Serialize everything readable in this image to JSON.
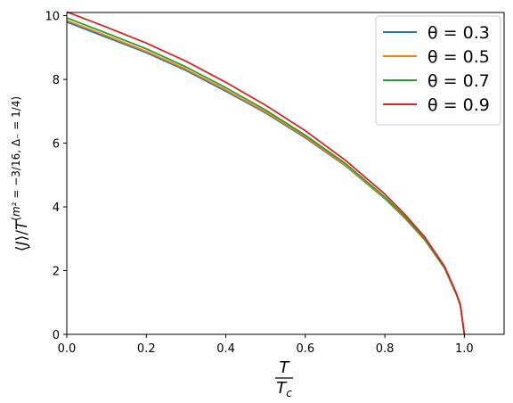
{
  "chart_data": {
    "type": "line",
    "xlabel_num": "T",
    "xlabel_den": "T_c",
    "ylabel": "⟨J⟩/T^(m² = −3/16, Δ₋ = 1/4)",
    "xlim": [
      0,
      1.1
    ],
    "ylim": [
      0,
      10.1
    ],
    "xticks": [
      "0.0",
      "0.2",
      "0.4",
      "0.6",
      "0.8",
      "1.0"
    ],
    "yticks": [
      "0",
      "2",
      "4",
      "6",
      "8",
      "10"
    ],
    "grid": false,
    "legend_position": "top-right",
    "x": [
      0,
      0.1,
      0.2,
      0.3,
      0.4,
      0.5,
      0.6,
      0.7,
      0.8,
      0.85,
      0.9,
      0.95,
      0.98,
      0.99,
      1.0
    ],
    "series": [
      {
        "name": "θ = 0.3",
        "label": "θ = 0.3",
        "color": "#1f77b4",
        "values": [
          9.8,
          9.32,
          8.84,
          8.28,
          7.63,
          6.95,
          6.17,
          5.3,
          4.26,
          3.65,
          2.97,
          2.08,
          1.25,
          0.9,
          0.0
        ]
      },
      {
        "name": "θ = 0.5",
        "label": "θ = 0.5",
        "color": "#ff7f0e",
        "values": [
          9.85,
          9.37,
          8.88,
          8.32,
          7.67,
          6.98,
          6.2,
          5.32,
          4.28,
          3.67,
          2.98,
          2.09,
          1.26,
          0.91,
          0.0
        ]
      },
      {
        "name": "θ = 0.7",
        "label": "θ = 0.7",
        "color": "#2ca02c",
        "values": [
          9.93,
          9.45,
          8.96,
          8.39,
          7.74,
          7.04,
          6.25,
          5.37,
          4.31,
          3.7,
          3.0,
          2.1,
          1.27,
          0.92,
          0.0
        ]
      },
      {
        "name": "θ = 0.9",
        "label": "θ = 0.9",
        "color": "#d62728",
        "values": [
          10.12,
          9.64,
          9.14,
          8.57,
          7.91,
          7.19,
          6.39,
          5.47,
          4.4,
          3.77,
          3.06,
          2.14,
          1.29,
          0.94,
          0.0
        ]
      }
    ]
  }
}
